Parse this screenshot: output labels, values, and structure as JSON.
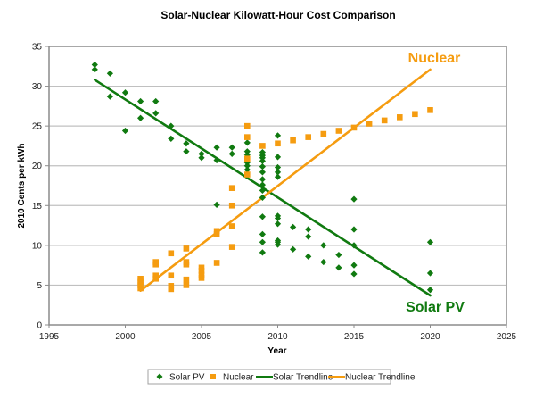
{
  "chart_data": {
    "type": "scatter",
    "title": "Solar-Nuclear Kilowatt-Hour Cost Comparison",
    "xlabel": "Year",
    "ylabel": "2010 Cents per kWh",
    "xlim": [
      1995,
      2025
    ],
    "ylim": [
      0,
      35
    ],
    "xticks": [
      "1995",
      "2000",
      "2005",
      "2010",
      "2015",
      "2020",
      "2025"
    ],
    "yticks": [
      "0",
      "5",
      "10",
      "15",
      "20",
      "25",
      "30",
      "35"
    ],
    "grid": "horizontal",
    "legend_position": "bottom",
    "colors": {
      "solar": "#107a10",
      "nuclear": "#f59c10",
      "grid": "#c0c0c0",
      "frame": "#8c8c8c"
    },
    "annotations": [
      {
        "text": "Nuclear",
        "series": "nuclear"
      },
      {
        "text": "Solar PV",
        "series": "solar"
      }
    ],
    "series": [
      {
        "name": "Solar PV",
        "kind": "points",
        "marker": "diamond",
        "points": [
          [
            1998,
            32.7
          ],
          [
            1998,
            32.1
          ],
          [
            1999,
            31.6
          ],
          [
            1999,
            28.7
          ],
          [
            2000,
            29.2
          ],
          [
            2000,
            24.4
          ],
          [
            2001,
            28.1
          ],
          [
            2001,
            26.0
          ],
          [
            2002,
            28.1
          ],
          [
            2002,
            26.6
          ],
          [
            2003,
            25.0
          ],
          [
            2003,
            23.4
          ],
          [
            2004,
            22.8
          ],
          [
            2004,
            21.8
          ],
          [
            2005,
            21.5
          ],
          [
            2005,
            21.0
          ],
          [
            2006,
            22.3
          ],
          [
            2006,
            20.7
          ],
          [
            2006,
            15.1
          ],
          [
            2007,
            22.3
          ],
          [
            2007,
            21.5
          ],
          [
            2008,
            22.9
          ],
          [
            2008,
            21.8
          ],
          [
            2008,
            21.4
          ],
          [
            2008,
            20.4
          ],
          [
            2008,
            20.0
          ],
          [
            2008,
            19.5
          ],
          [
            2009,
            21.7
          ],
          [
            2009,
            21.3
          ],
          [
            2009,
            21.0
          ],
          [
            2009,
            20.6
          ],
          [
            2009,
            19.9
          ],
          [
            2009,
            19.2
          ],
          [
            2009,
            18.3
          ],
          [
            2009,
            17.6
          ],
          [
            2009,
            16.9
          ],
          [
            2009,
            16.0
          ],
          [
            2009,
            13.6
          ],
          [
            2009,
            11.4
          ],
          [
            2009,
            10.4
          ],
          [
            2009,
            9.1
          ],
          [
            2010,
            23.8
          ],
          [
            2010,
            21.1
          ],
          [
            2010,
            19.8
          ],
          [
            2010,
            19.2
          ],
          [
            2010,
            18.6
          ],
          [
            2010,
            13.7
          ],
          [
            2010,
            13.4
          ],
          [
            2010,
            12.7
          ],
          [
            2010,
            10.6
          ],
          [
            2010,
            10.4
          ],
          [
            2010,
            10.1
          ],
          [
            2011,
            12.3
          ],
          [
            2011,
            9.5
          ],
          [
            2012,
            12.0
          ],
          [
            2012,
            11.1
          ],
          [
            2012,
            8.6
          ],
          [
            2013,
            10.0
          ],
          [
            2013,
            7.9
          ],
          [
            2014,
            8.8
          ],
          [
            2014,
            7.2
          ],
          [
            2015,
            15.8
          ],
          [
            2015,
            12.0
          ],
          [
            2015,
            10.0
          ],
          [
            2015,
            7.5
          ],
          [
            2015,
            6.4
          ],
          [
            2020,
            10.4
          ],
          [
            2020,
            6.5
          ],
          [
            2020,
            4.4
          ]
        ]
      },
      {
        "name": "Nuclear",
        "kind": "points",
        "marker": "square",
        "points": [
          [
            2001,
            5.8
          ],
          [
            2001,
            5.4
          ],
          [
            2001,
            5.0
          ],
          [
            2001,
            4.6
          ],
          [
            2002,
            7.9
          ],
          [
            2002,
            7.6
          ],
          [
            2002,
            6.2
          ],
          [
            2002,
            5.8
          ],
          [
            2003,
            9.0
          ],
          [
            2003,
            6.2
          ],
          [
            2003,
            4.9
          ],
          [
            2003,
            4.5
          ],
          [
            2004,
            9.6
          ],
          [
            2004,
            7.9
          ],
          [
            2004,
            7.6
          ],
          [
            2004,
            5.7
          ],
          [
            2004,
            5.0
          ],
          [
            2005,
            7.2
          ],
          [
            2005,
            6.8
          ],
          [
            2005,
            6.3
          ],
          [
            2005,
            5.9
          ],
          [
            2006,
            11.8
          ],
          [
            2006,
            11.4
          ],
          [
            2006,
            7.8
          ],
          [
            2007,
            17.2
          ],
          [
            2007,
            15.0
          ],
          [
            2007,
            12.4
          ],
          [
            2007,
            9.8
          ],
          [
            2008,
            25.0
          ],
          [
            2008,
            23.6
          ],
          [
            2008,
            20.9
          ],
          [
            2008,
            18.9
          ],
          [
            2009,
            22.5
          ],
          [
            2010,
            22.8
          ],
          [
            2011,
            23.2
          ],
          [
            2012,
            23.6
          ],
          [
            2013,
            24.0
          ],
          [
            2014,
            24.4
          ],
          [
            2015,
            24.8
          ],
          [
            2016,
            25.3
          ],
          [
            2017,
            25.7
          ],
          [
            2018,
            26.1
          ],
          [
            2019,
            26.5
          ],
          [
            2020,
            27.0
          ]
        ]
      },
      {
        "name": "Solar Trendline",
        "kind": "line",
        "x": [
          1998,
          2020
        ],
        "y": [
          30.8,
          3.7
        ]
      },
      {
        "name": "Nuclear Trendline",
        "kind": "line",
        "x": [
          2001,
          2020
        ],
        "y": [
          4.3,
          32.1
        ]
      }
    ]
  }
}
